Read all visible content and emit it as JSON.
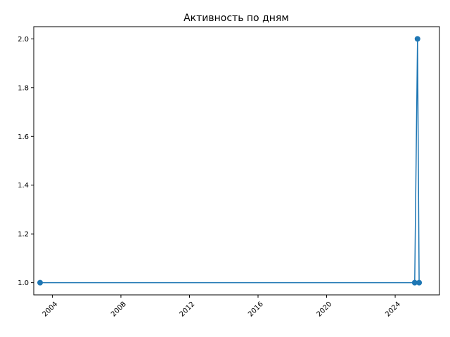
{
  "chart_data": {
    "type": "line",
    "title": "Активность по дням",
    "xlabel": "",
    "ylabel": "",
    "x": [
      "2003-04-15",
      "2025-02-20",
      "2025-04-20",
      "2025-05-25"
    ],
    "series": [
      {
        "values": [
          1,
          1,
          2,
          1
        ]
      }
    ],
    "xlim": [
      "2002-12-01",
      "2026-08-01"
    ],
    "ylim": [
      0.95,
      2.05
    ],
    "x_ticks": [
      {
        "value": "2004-01-01",
        "label": "2004"
      },
      {
        "value": "2008-01-01",
        "label": "2008"
      },
      {
        "value": "2012-01-01",
        "label": "2012"
      },
      {
        "value": "2016-01-01",
        "label": "2016"
      },
      {
        "value": "2020-01-01",
        "label": "2020"
      },
      {
        "value": "2024-01-01",
        "label": "2024"
      }
    ],
    "y_ticks": [
      {
        "value": 1.0,
        "label": "1.0"
      },
      {
        "value": 1.2,
        "label": "1.2"
      },
      {
        "value": 1.4,
        "label": "1.4"
      },
      {
        "value": 1.6,
        "label": "1.6"
      },
      {
        "value": 1.8,
        "label": "1.8"
      },
      {
        "value": 2.0,
        "label": "2.0"
      }
    ],
    "x_tick_rotation": 45,
    "grid": false,
    "legend": "none",
    "color": "#1f77b4"
  }
}
